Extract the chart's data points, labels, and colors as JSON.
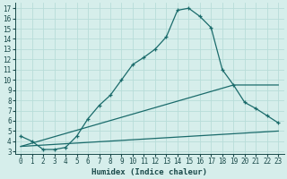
{
  "xlabel": "Humidex (Indice chaleur)",
  "background_color": "#d6eeeb",
  "grid_color": "#b8ddd9",
  "line_color": "#1a6b6b",
  "xlim": [
    -0.5,
    23.5
  ],
  "ylim": [
    2.8,
    17.5
  ],
  "xticks": [
    0,
    1,
    2,
    3,
    4,
    5,
    6,
    7,
    8,
    9,
    10,
    11,
    12,
    13,
    14,
    15,
    16,
    17,
    18,
    19,
    20,
    21,
    22,
    23
  ],
  "yticks": [
    3,
    4,
    5,
    6,
    7,
    8,
    9,
    10,
    11,
    12,
    13,
    14,
    15,
    16,
    17
  ],
  "line1_x": [
    0,
    1,
    2,
    3,
    4,
    5,
    6,
    7,
    8,
    9,
    10,
    11,
    12,
    13,
    14,
    15,
    16,
    17,
    18,
    19,
    20,
    21,
    22,
    23
  ],
  "line1_y": [
    4.5,
    4.0,
    3.2,
    3.2,
    3.4,
    4.5,
    6.2,
    7.5,
    8.5,
    10.0,
    11.5,
    12.2,
    13.0,
    14.2,
    16.8,
    17.0,
    16.2,
    15.1,
    11.0,
    9.5,
    7.8,
    7.2,
    6.5,
    5.8
  ],
  "line2_x": [
    0,
    23
  ],
  "line2_y": [
    3.5,
    5.0
  ],
  "line3_x": [
    0,
    19,
    23
  ],
  "line3_y": [
    3.5,
    9.5,
    9.5
  ],
  "xlabel_fontsize": 6.5,
  "tick_fontsize": 5.5
}
